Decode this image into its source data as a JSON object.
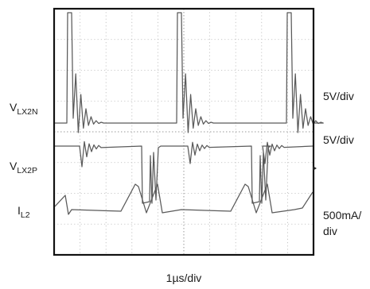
{
  "chart_data": {
    "type": "line",
    "title": "",
    "xlabel": "1µs/div",
    "time_per_div": "1µs/div",
    "grid": {
      "horizontal_divisions": 8,
      "vertical_divisions": 10,
      "visible": true
    },
    "series": [
      {
        "name": "VLX2N",
        "label_main": "V",
        "label_sub": "LX2N",
        "scale": "5V/div",
        "description": "sharp positive pulses of ~4 divisions, each followed by damped ringing, period ~3.5 divisions"
      },
      {
        "name": "VLX2P",
        "label_main": "V",
        "label_sub": "LX2P",
        "scale": "5V/div",
        "description": "high level with negative-going pulses of ~2 divisions, ringing after each transition"
      },
      {
        "name": "IL2",
        "label_main": "I",
        "label_sub": "L2",
        "scale": "500mA/ div",
        "scale_line1": "500mA/",
        "scale_line2": "div",
        "description": "sawtooth inductor current ramps of ~1 division amplitude"
      }
    ],
    "annotations": [
      "5V/div",
      "5V/div",
      "500mA/",
      "div",
      "1µs/div"
    ]
  },
  "colors": {
    "trace": "#5a5a5a",
    "grid": "#b8b8b8",
    "frame": "#111111",
    "background": "#ffffff"
  }
}
